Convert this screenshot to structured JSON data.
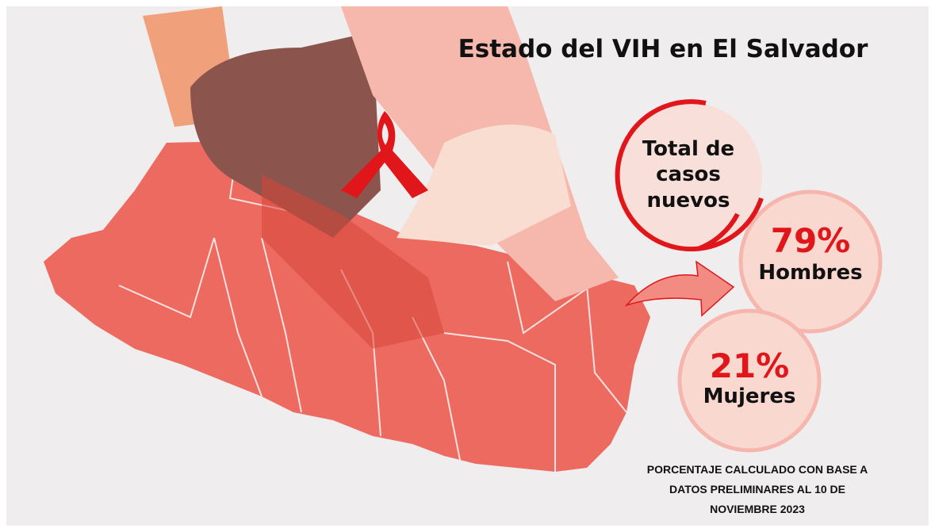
{
  "header": {
    "title": "Estado del VIH en El Salvador"
  },
  "stats": {
    "total": {
      "label": [
        "Total de",
        "casos",
        "nuevos"
      ]
    },
    "men": {
      "value": "79%",
      "label": "Hombres"
    },
    "women": {
      "value": "21%",
      "label": "Mujeres"
    }
  },
  "footnote": [
    "PORCENTAJE CALCULADO CON BASE A",
    "DATOS PRELIMINARES AL 10 DE",
    "NOVIEMBRE 2023"
  ]
}
